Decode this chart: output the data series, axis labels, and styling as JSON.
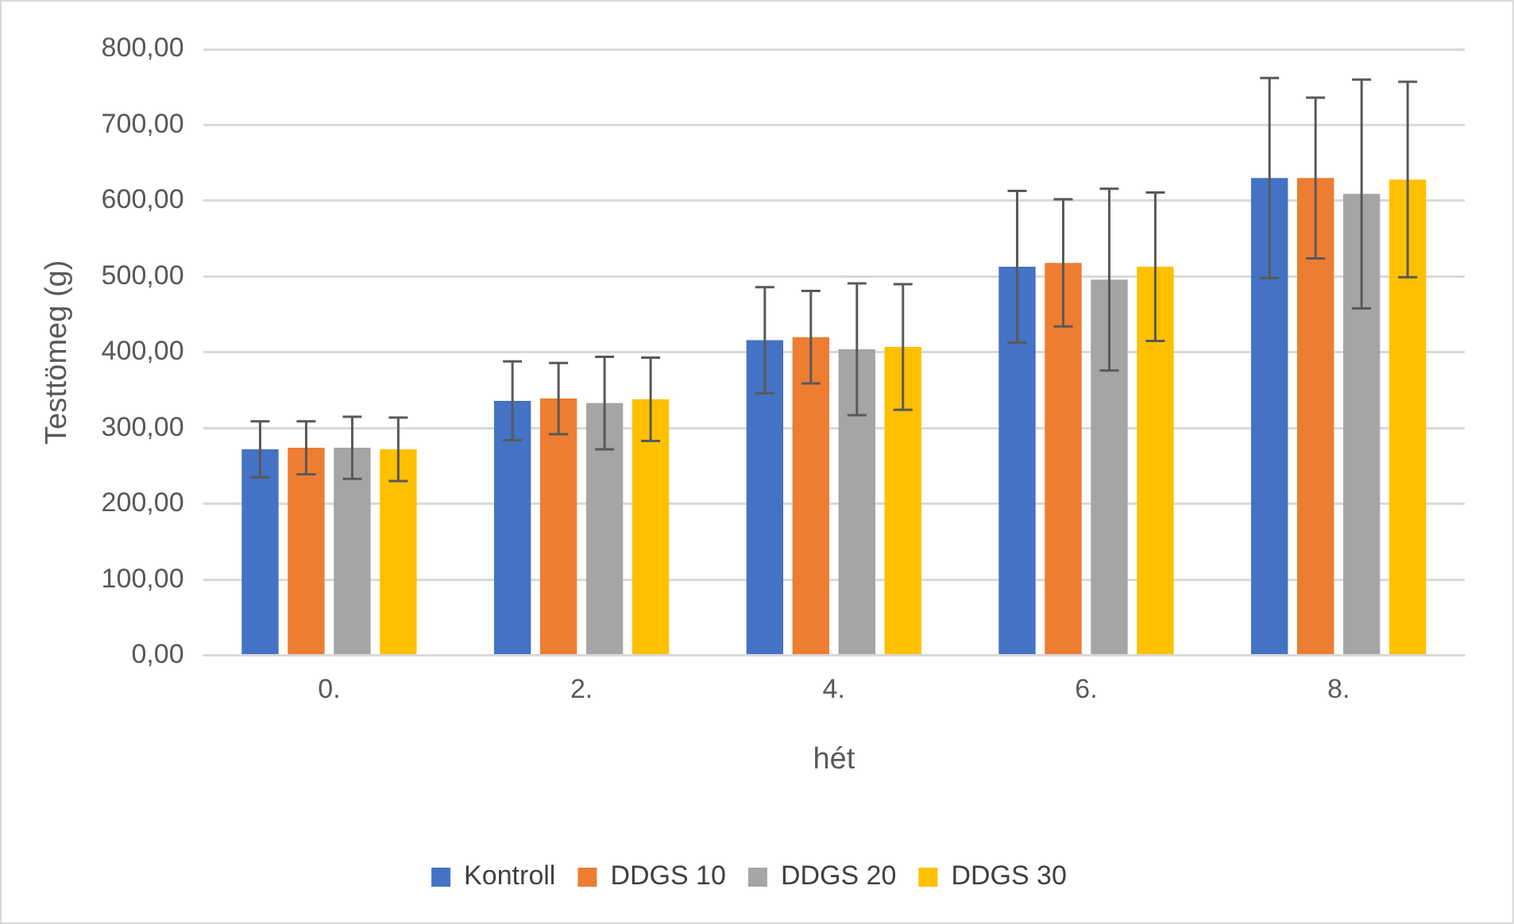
{
  "chart_data": {
    "type": "bar",
    "xlabel": "hét",
    "ylabel": "Testtömeg (g)",
    "categories": [
      "0.",
      "2.",
      "4.",
      "6.",
      "8."
    ],
    "series": [
      {
        "name": "Kontroll",
        "color": "#4472c4",
        "values": [
          272,
          336,
          416,
          513,
          630
        ],
        "errors": [
          37,
          52,
          70,
          100,
          132
        ]
      },
      {
        "name": "DDGS 10",
        "color": "#ed7d31",
        "values": [
          274,
          339,
          420,
          518,
          630
        ],
        "errors": [
          35,
          47,
          61,
          84,
          106
        ]
      },
      {
        "name": "DDGS 20",
        "color": "#a5a5a5",
        "values": [
          274,
          333,
          404,
          496,
          609
        ],
        "errors": [
          41,
          61,
          87,
          120,
          151
        ]
      },
      {
        "name": "DDGS 30",
        "color": "#ffc000",
        "values": [
          272,
          338,
          407,
          513,
          628
        ],
        "errors": [
          42,
          55,
          83,
          98,
          129
        ]
      }
    ],
    "ylim": [
      0,
      800
    ],
    "yticks": [
      {
        "value": 0,
        "label": "0,00"
      },
      {
        "value": 100,
        "label": "100,00"
      },
      {
        "value": 200,
        "label": "200,00"
      },
      {
        "value": 300,
        "label": "300,00"
      },
      {
        "value": 400,
        "label": "400,00"
      },
      {
        "value": 500,
        "label": "500,00"
      },
      {
        "value": 600,
        "label": "600,00"
      },
      {
        "value": 700,
        "label": "700,00"
      },
      {
        "value": 800,
        "label": "800,00"
      }
    ],
    "grid": "y",
    "legend": "bottom"
  }
}
